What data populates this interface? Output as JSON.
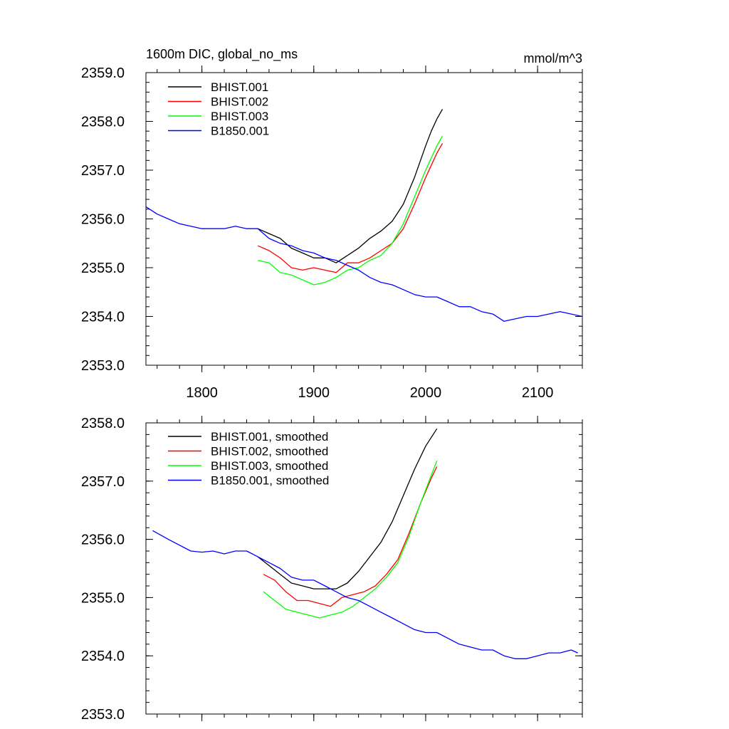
{
  "chart_data": [
    {
      "type": "line",
      "title": "1600m DIC, global_no_ms",
      "units": "mmol/m^3",
      "xlim": [
        1750,
        2140
      ],
      "ylim": [
        2353.0,
        2359.0
      ],
      "xticks": [
        1800,
        1900,
        2000,
        2100
      ],
      "xtick_labels": [
        "1800",
        "1900",
        "2000",
        "2100"
      ],
      "yticks": [
        2353.0,
        2354.0,
        2355.0,
        2356.0,
        2357.0,
        2358.0,
        2359.0
      ],
      "ytick_labels": [
        "2353.0",
        "2354.0",
        "2355.0",
        "2356.0",
        "2357.0",
        "2358.0",
        "2359.0"
      ],
      "legend_position": "top-left",
      "grid": false,
      "series": [
        {
          "name": "BHIST.001",
          "color": "#000000",
          "x": [
            1850,
            1860,
            1870,
            1880,
            1890,
            1900,
            1910,
            1920,
            1930,
            1940,
            1950,
            1960,
            1970,
            1980,
            1990,
            2000,
            2005,
            2010,
            2015
          ],
          "y": [
            2355.8,
            2355.7,
            2355.6,
            2355.4,
            2355.3,
            2355.2,
            2355.2,
            2355.1,
            2355.25,
            2355.4,
            2355.6,
            2355.75,
            2355.95,
            2356.3,
            2356.85,
            2357.5,
            2357.8,
            2358.05,
            2358.25
          ]
        },
        {
          "name": "BHIST.002",
          "color": "#ff0000",
          "x": [
            1850,
            1860,
            1870,
            1880,
            1890,
            1900,
            1910,
            1920,
            1930,
            1940,
            1950,
            1960,
            1970,
            1980,
            1990,
            2000,
            2005,
            2010,
            2015
          ],
          "y": [
            2355.45,
            2355.35,
            2355.2,
            2355.0,
            2354.95,
            2355.0,
            2354.95,
            2354.9,
            2355.1,
            2355.1,
            2355.2,
            2355.35,
            2355.5,
            2355.8,
            2356.3,
            2356.85,
            2357.1,
            2357.35,
            2357.55
          ]
        },
        {
          "name": "BHIST.003",
          "color": "#00ff00",
          "x": [
            1850,
            1860,
            1870,
            1880,
            1890,
            1900,
            1910,
            1920,
            1930,
            1940,
            1950,
            1960,
            1970,
            1980,
            1990,
            2000,
            2005,
            2010,
            2015
          ],
          "y": [
            2355.15,
            2355.1,
            2354.9,
            2354.85,
            2354.75,
            2354.65,
            2354.7,
            2354.8,
            2354.95,
            2355.0,
            2355.15,
            2355.25,
            2355.5,
            2355.9,
            2356.45,
            2357.0,
            2357.25,
            2357.5,
            2357.7
          ]
        },
        {
          "name": "B1850.001",
          "color": "#0000ff",
          "x": [
            1750,
            1760,
            1770,
            1780,
            1790,
            1800,
            1810,
            1820,
            1830,
            1840,
            1850,
            1860,
            1870,
            1880,
            1890,
            1900,
            1910,
            1920,
            1930,
            1940,
            1950,
            1960,
            1970,
            1980,
            1990,
            2000,
            2010,
            2020,
            2030,
            2040,
            2050,
            2060,
            2070,
            2080,
            2090,
            2100,
            2110,
            2120,
            2130,
            2140
          ],
          "y": [
            2356.25,
            2356.1,
            2356.0,
            2355.9,
            2355.85,
            2355.8,
            2355.8,
            2355.8,
            2355.85,
            2355.8,
            2355.8,
            2355.6,
            2355.5,
            2355.45,
            2355.35,
            2355.3,
            2355.2,
            2355.15,
            2355.05,
            2354.95,
            2354.8,
            2354.7,
            2354.65,
            2354.55,
            2354.45,
            2354.4,
            2354.4,
            2354.3,
            2354.2,
            2354.2,
            2354.1,
            2354.05,
            2353.9,
            2353.95,
            2354.0,
            2354.0,
            2354.05,
            2354.1,
            2354.05,
            2354.0
          ]
        }
      ]
    },
    {
      "type": "line",
      "title": "",
      "xlim": [
        1750,
        2140
      ],
      "ylim": [
        2353.0,
        2358.0
      ],
      "xticks": [
        1800,
        1900,
        2000,
        2100
      ],
      "xtick_labels": [],
      "yticks": [
        2353.0,
        2354.0,
        2355.0,
        2356.0,
        2357.0,
        2358.0
      ],
      "ytick_labels": [
        "2353.0",
        "2354.0",
        "2355.0",
        "2356.0",
        "2357.0",
        "2358.0"
      ],
      "legend_position": "top-left",
      "grid": false,
      "series": [
        {
          "name": "BHIST.001, smoothed",
          "color": "#000000",
          "x": [
            1850,
            1860,
            1870,
            1880,
            1890,
            1900,
            1910,
            1920,
            1930,
            1940,
            1950,
            1960,
            1970,
            1980,
            1990,
            2000,
            2010
          ],
          "y": [
            2355.7,
            2355.55,
            2355.4,
            2355.25,
            2355.2,
            2355.15,
            2355.15,
            2355.15,
            2355.25,
            2355.45,
            2355.7,
            2355.95,
            2356.3,
            2356.75,
            2357.2,
            2357.6,
            2357.9
          ]
        },
        {
          "name": "BHIST.002, smoothed",
          "color": "#ff0000",
          "x": [
            1855,
            1865,
            1875,
            1885,
            1895,
            1905,
            1915,
            1925,
            1935,
            1945,
            1955,
            1965,
            1975,
            1985,
            1995,
            2005,
            2010
          ],
          "y": [
            2355.4,
            2355.3,
            2355.1,
            2354.95,
            2354.95,
            2354.9,
            2354.85,
            2355.0,
            2355.05,
            2355.1,
            2355.2,
            2355.4,
            2355.65,
            2356.1,
            2356.6,
            2357.05,
            2357.25
          ]
        },
        {
          "name": "BHIST.003, smoothed",
          "color": "#00ff00",
          "x": [
            1855,
            1865,
            1875,
            1885,
            1895,
            1905,
            1915,
            1925,
            1935,
            1945,
            1955,
            1965,
            1975,
            1985,
            1995,
            2005,
            2010
          ],
          "y": [
            2355.1,
            2354.95,
            2354.8,
            2354.75,
            2354.7,
            2354.65,
            2354.7,
            2354.75,
            2354.85,
            2355.0,
            2355.15,
            2355.35,
            2355.6,
            2356.05,
            2356.6,
            2357.1,
            2357.35
          ]
        },
        {
          "name": "B1850.001, smoothed",
          "color": "#0000ff",
          "x": [
            1756,
            1770,
            1780,
            1790,
            1800,
            1810,
            1820,
            1830,
            1840,
            1850,
            1860,
            1870,
            1880,
            1890,
            1900,
            1910,
            1920,
            1930,
            1940,
            1950,
            1960,
            1970,
            1980,
            1990,
            2000,
            2010,
            2020,
            2030,
            2040,
            2050,
            2060,
            2070,
            2080,
            2090,
            2100,
            2110,
            2120,
            2130,
            2136
          ],
          "y": [
            2356.15,
            2356.0,
            2355.9,
            2355.8,
            2355.78,
            2355.8,
            2355.75,
            2355.8,
            2355.8,
            2355.7,
            2355.6,
            2355.5,
            2355.35,
            2355.3,
            2355.3,
            2355.2,
            2355.1,
            2355.0,
            2354.95,
            2354.85,
            2354.75,
            2354.65,
            2354.55,
            2354.45,
            2354.4,
            2354.4,
            2354.3,
            2354.2,
            2354.15,
            2354.1,
            2354.1,
            2354.0,
            2353.95,
            2353.95,
            2354.0,
            2354.05,
            2354.05,
            2354.1,
            2354.05
          ]
        }
      ]
    }
  ]
}
